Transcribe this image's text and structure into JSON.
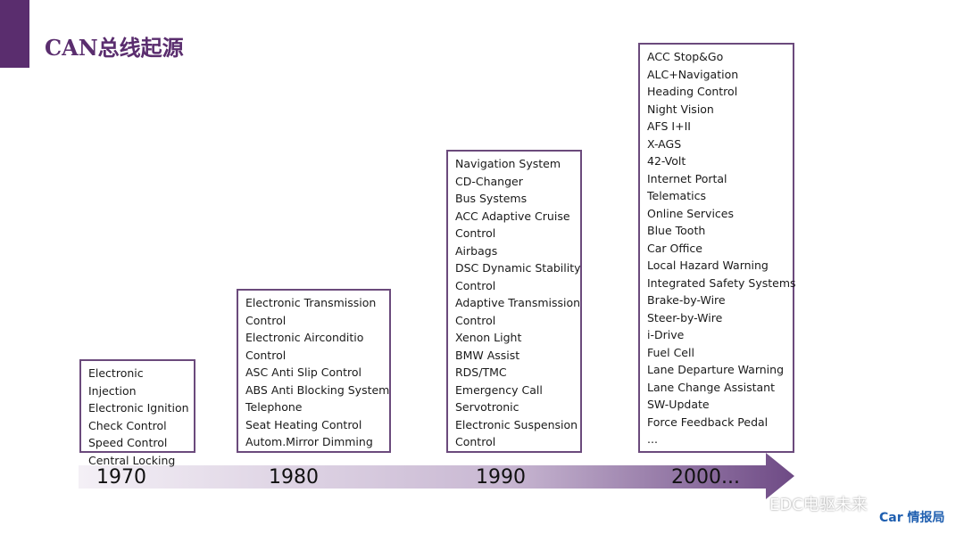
{
  "header": {
    "title": "CAN总线起源"
  },
  "timeline": {
    "years": [
      "1970",
      "1980",
      "1990",
      "2000..."
    ]
  },
  "boxes": [
    {
      "items": [
        "Electronic",
        "Injection",
        "Electronic Ignition",
        "Check Control",
        "Speed Control",
        "Central Locking"
      ]
    },
    {
      "items": [
        "Electronic Transmission",
        "Control",
        "Electronic Airconditio",
        "Control",
        "ASC Anti Slip Control",
        "ABS Anti Blocking System",
        "Telephone",
        "Seat Heating Control",
        "Autom.Mirror Dimming"
      ]
    },
    {
      "items": [
        "Navigation System",
        "CD-Changer",
        "Bus Systems",
        "ACC Adaptive Cruise",
        "Control",
        "Airbags",
        "DSC Dynamic Stability",
        "Control",
        "Adaptive Transmission",
        "Control",
        "Xenon  Light",
        "BMW  Assist",
        "RDS/TMC",
        "Emergency Call",
        "Servotronic",
        "Electronic Suspension",
        "Control"
      ]
    },
    {
      "items": [
        "ACC Stop&Go",
        "ALC+Navigation",
        "Heading Control",
        "Night Vision",
        "AFS I+II",
        "X-AGS",
        "42-Volt",
        "Internet Portal",
        "Telematics",
        "Online Services",
        "Blue Tooth",
        "Car Office",
        "Local Hazard Warning",
        "Integrated Safety Systems",
        "Brake-by-Wire",
        "Steer-by-Wire",
        "i-Drive",
        "Fuel Cell",
        "Lane Departure Warning",
        "Lane Change Assistant",
        "SW-Update",
        "Force Feedback Pedal",
        "..."
      ]
    }
  ],
  "watermark": {
    "account": "EDC电驱未来",
    "logo": "Car 情报局"
  }
}
